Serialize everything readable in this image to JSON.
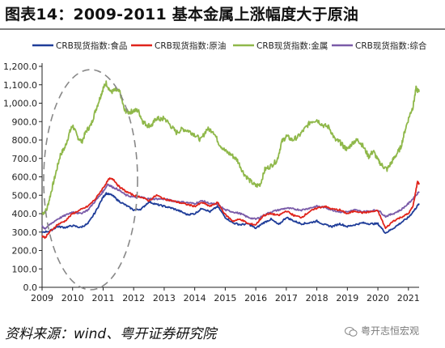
{
  "figure": {
    "title": "图表14：2009-2011 基本金属上涨幅度大于原油",
    "source": "资料来源：wind、粤开证券研究院",
    "watermark": "粤开志恒宏观"
  },
  "chart_data": {
    "type": "line",
    "x_ticks": [
      "2009",
      "2010",
      "2011",
      "2012",
      "2013",
      "2014",
      "2015",
      "2016",
      "2017",
      "2018",
      "2019",
      "2020",
      "2021"
    ],
    "y_ticks": [
      "0.0",
      "100.0",
      "200.0",
      "300.0",
      "400.0",
      "500.0",
      "600.0",
      "700.0",
      "800.0",
      "900.0",
      "1,000.0",
      "1,100.0",
      "1,200.0"
    ],
    "ylim": [
      0,
      1200
    ],
    "xlim": [
      2009.0,
      2021.35
    ],
    "legend_position": "top",
    "grid": false,
    "annotation": "dashed ellipse highlighting 2009-2011",
    "series": [
      {
        "name": "CRB现货指数:食品",
        "color": "#1f3d99",
        "points": [
          [
            2009.0,
            300
          ],
          [
            2009.25,
            305
          ],
          [
            2009.5,
            330
          ],
          [
            2009.75,
            325
          ],
          [
            2010.0,
            335
          ],
          [
            2010.25,
            325
          ],
          [
            2010.5,
            345
          ],
          [
            2010.75,
            410
          ],
          [
            2011.0,
            490
          ],
          [
            2011.1,
            510
          ],
          [
            2011.3,
            500
          ],
          [
            2011.5,
            470
          ],
          [
            2011.75,
            445
          ],
          [
            2012.0,
            420
          ],
          [
            2012.25,
            425
          ],
          [
            2012.5,
            465
          ],
          [
            2012.75,
            450
          ],
          [
            2013.0,
            440
          ],
          [
            2013.25,
            430
          ],
          [
            2013.5,
            415
          ],
          [
            2013.75,
            395
          ],
          [
            2014.0,
            400
          ],
          [
            2014.25,
            430
          ],
          [
            2014.5,
            410
          ],
          [
            2014.75,
            440
          ],
          [
            2015.0,
            380
          ],
          [
            2015.25,
            350
          ],
          [
            2015.5,
            340
          ],
          [
            2015.75,
            345
          ],
          [
            2016.0,
            320
          ],
          [
            2016.25,
            350
          ],
          [
            2016.5,
            370
          ],
          [
            2016.75,
            340
          ],
          [
            2017.0,
            380
          ],
          [
            2017.25,
            360
          ],
          [
            2017.5,
            345
          ],
          [
            2017.75,
            350
          ],
          [
            2018.0,
            360
          ],
          [
            2018.25,
            340
          ],
          [
            2018.5,
            330
          ],
          [
            2018.75,
            345
          ],
          [
            2019.0,
            330
          ],
          [
            2019.25,
            340
          ],
          [
            2019.5,
            350
          ],
          [
            2019.75,
            345
          ],
          [
            2020.0,
            345
          ],
          [
            2020.25,
            295
          ],
          [
            2020.5,
            320
          ],
          [
            2020.75,
            350
          ],
          [
            2021.0,
            380
          ],
          [
            2021.2,
            420
          ],
          [
            2021.35,
            455
          ]
        ]
      },
      {
        "name": "CRB现货指数:原油",
        "color": "#e0241b",
        "points": [
          [
            2009.0,
            280
          ],
          [
            2009.1,
            270
          ],
          [
            2009.25,
            300
          ],
          [
            2009.5,
            340
          ],
          [
            2009.75,
            360
          ],
          [
            2010.0,
            400
          ],
          [
            2010.25,
            420
          ],
          [
            2010.5,
            440
          ],
          [
            2010.75,
            480
          ],
          [
            2011.0,
            540
          ],
          [
            2011.2,
            590
          ],
          [
            2011.35,
            585
          ],
          [
            2011.5,
            550
          ],
          [
            2011.75,
            520
          ],
          [
            2012.0,
            500
          ],
          [
            2012.25,
            490
          ],
          [
            2012.5,
            470
          ],
          [
            2012.75,
            500
          ],
          [
            2013.0,
            480
          ],
          [
            2013.25,
            470
          ],
          [
            2013.5,
            460
          ],
          [
            2013.75,
            450
          ],
          [
            2014.0,
            440
          ],
          [
            2014.25,
            460
          ],
          [
            2014.5,
            440
          ],
          [
            2014.75,
            460
          ],
          [
            2015.0,
            395
          ],
          [
            2015.25,
            360
          ],
          [
            2015.5,
            370
          ],
          [
            2015.75,
            345
          ],
          [
            2016.0,
            340
          ],
          [
            2016.25,
            390
          ],
          [
            2016.5,
            400
          ],
          [
            2016.75,
            390
          ],
          [
            2017.0,
            415
          ],
          [
            2017.25,
            390
          ],
          [
            2017.5,
            380
          ],
          [
            2017.75,
            410
          ],
          [
            2018.0,
            430
          ],
          [
            2018.25,
            440
          ],
          [
            2018.5,
            425
          ],
          [
            2018.75,
            420
          ],
          [
            2019.0,
            400
          ],
          [
            2019.25,
            415
          ],
          [
            2019.5,
            405
          ],
          [
            2019.75,
            410
          ],
          [
            2020.0,
            415
          ],
          [
            2020.25,
            320
          ],
          [
            2020.5,
            360
          ],
          [
            2020.75,
            380
          ],
          [
            2021.0,
            400
          ],
          [
            2021.15,
            440
          ],
          [
            2021.3,
            575
          ],
          [
            2021.35,
            560
          ]
        ]
      },
      {
        "name": "CRB现货指数:金属",
        "color": "#8fb84a",
        "points": [
          [
            2009.0,
            400
          ],
          [
            2009.15,
            420
          ],
          [
            2009.3,
            520
          ],
          [
            2009.45,
            620
          ],
          [
            2009.6,
            720
          ],
          [
            2009.75,
            760
          ],
          [
            2009.9,
            840
          ],
          [
            2010.0,
            880
          ],
          [
            2010.15,
            820
          ],
          [
            2010.3,
            790
          ],
          [
            2010.45,
            850
          ],
          [
            2010.6,
            880
          ],
          [
            2010.75,
            960
          ],
          [
            2010.9,
            1030
          ],
          [
            2011.0,
            1080
          ],
          [
            2011.1,
            1110
          ],
          [
            2011.25,
            1060
          ],
          [
            2011.4,
            1070
          ],
          [
            2011.55,
            1060
          ],
          [
            2011.7,
            960
          ],
          [
            2011.85,
            950
          ],
          [
            2012.0,
            960
          ],
          [
            2012.15,
            960
          ],
          [
            2012.3,
            900
          ],
          [
            2012.45,
            880
          ],
          [
            2012.6,
            880
          ],
          [
            2012.75,
            920
          ],
          [
            2012.9,
            910
          ],
          [
            2013.0,
            920
          ],
          [
            2013.2,
            880
          ],
          [
            2013.4,
            840
          ],
          [
            2013.6,
            860
          ],
          [
            2013.8,
            850
          ],
          [
            2014.0,
            830
          ],
          [
            2014.2,
            800
          ],
          [
            2014.4,
            860
          ],
          [
            2014.6,
            850
          ],
          [
            2014.8,
            780
          ],
          [
            2015.0,
            740
          ],
          [
            2015.2,
            720
          ],
          [
            2015.4,
            690
          ],
          [
            2015.6,
            620
          ],
          [
            2015.8,
            580
          ],
          [
            2016.0,
            550
          ],
          [
            2016.15,
            560
          ],
          [
            2016.3,
            640
          ],
          [
            2016.5,
            660
          ],
          [
            2016.7,
            690
          ],
          [
            2016.85,
            790
          ],
          [
            2017.0,
            820
          ],
          [
            2017.2,
            800
          ],
          [
            2017.4,
            820
          ],
          [
            2017.6,
            860
          ],
          [
            2017.8,
            900
          ],
          [
            2018.0,
            910
          ],
          [
            2018.2,
            880
          ],
          [
            2018.4,
            870
          ],
          [
            2018.6,
            800
          ],
          [
            2018.75,
            790
          ],
          [
            2018.9,
            760
          ],
          [
            2019.0,
            750
          ],
          [
            2019.2,
            790
          ],
          [
            2019.35,
            800
          ],
          [
            2019.5,
            770
          ],
          [
            2019.7,
            710
          ],
          [
            2019.85,
            740
          ],
          [
            2020.0,
            690
          ],
          [
            2020.15,
            660
          ],
          [
            2020.3,
            640
          ],
          [
            2020.45,
            680
          ],
          [
            2020.6,
            720
          ],
          [
            2020.75,
            760
          ],
          [
            2020.9,
            860
          ],
          [
            2021.05,
            940
          ],
          [
            2021.15,
            980
          ],
          [
            2021.25,
            1080
          ],
          [
            2021.35,
            1060
          ]
        ]
      },
      {
        "name": "CRB现货指数:综合",
        "color": "#7a5ba8",
        "points": [
          [
            2009.0,
            330
          ],
          [
            2009.1,
            320
          ],
          [
            2009.25,
            340
          ],
          [
            2009.5,
            370
          ],
          [
            2009.75,
            390
          ],
          [
            2010.0,
            410
          ],
          [
            2010.25,
            400
          ],
          [
            2010.5,
            420
          ],
          [
            2010.75,
            470
          ],
          [
            2011.0,
            520
          ],
          [
            2011.15,
            560
          ],
          [
            2011.3,
            545
          ],
          [
            2011.5,
            530
          ],
          [
            2011.75,
            500
          ],
          [
            2012.0,
            490
          ],
          [
            2012.25,
            490
          ],
          [
            2012.5,
            480
          ],
          [
            2012.75,
            480
          ],
          [
            2013.0,
            480
          ],
          [
            2013.25,
            470
          ],
          [
            2013.5,
            465
          ],
          [
            2013.75,
            460
          ],
          [
            2014.0,
            455
          ],
          [
            2014.25,
            470
          ],
          [
            2014.5,
            455
          ],
          [
            2014.75,
            450
          ],
          [
            2015.0,
            420
          ],
          [
            2015.25,
            410
          ],
          [
            2015.5,
            400
          ],
          [
            2015.75,
            380
          ],
          [
            2016.0,
            370
          ],
          [
            2016.25,
            390
          ],
          [
            2016.5,
            410
          ],
          [
            2016.75,
            420
          ],
          [
            2017.0,
            430
          ],
          [
            2017.25,
            425
          ],
          [
            2017.5,
            420
          ],
          [
            2017.75,
            430
          ],
          [
            2018.0,
            440
          ],
          [
            2018.25,
            435
          ],
          [
            2018.5,
            420
          ],
          [
            2018.75,
            410
          ],
          [
            2019.0,
            410
          ],
          [
            2019.25,
            420
          ],
          [
            2019.5,
            410
          ],
          [
            2019.75,
            415
          ],
          [
            2020.0,
            420
          ],
          [
            2020.25,
            385
          ],
          [
            2020.5,
            400
          ],
          [
            2020.75,
            420
          ],
          [
            2021.0,
            455
          ],
          [
            2021.2,
            490
          ],
          [
            2021.35,
            520
          ]
        ]
      }
    ]
  }
}
